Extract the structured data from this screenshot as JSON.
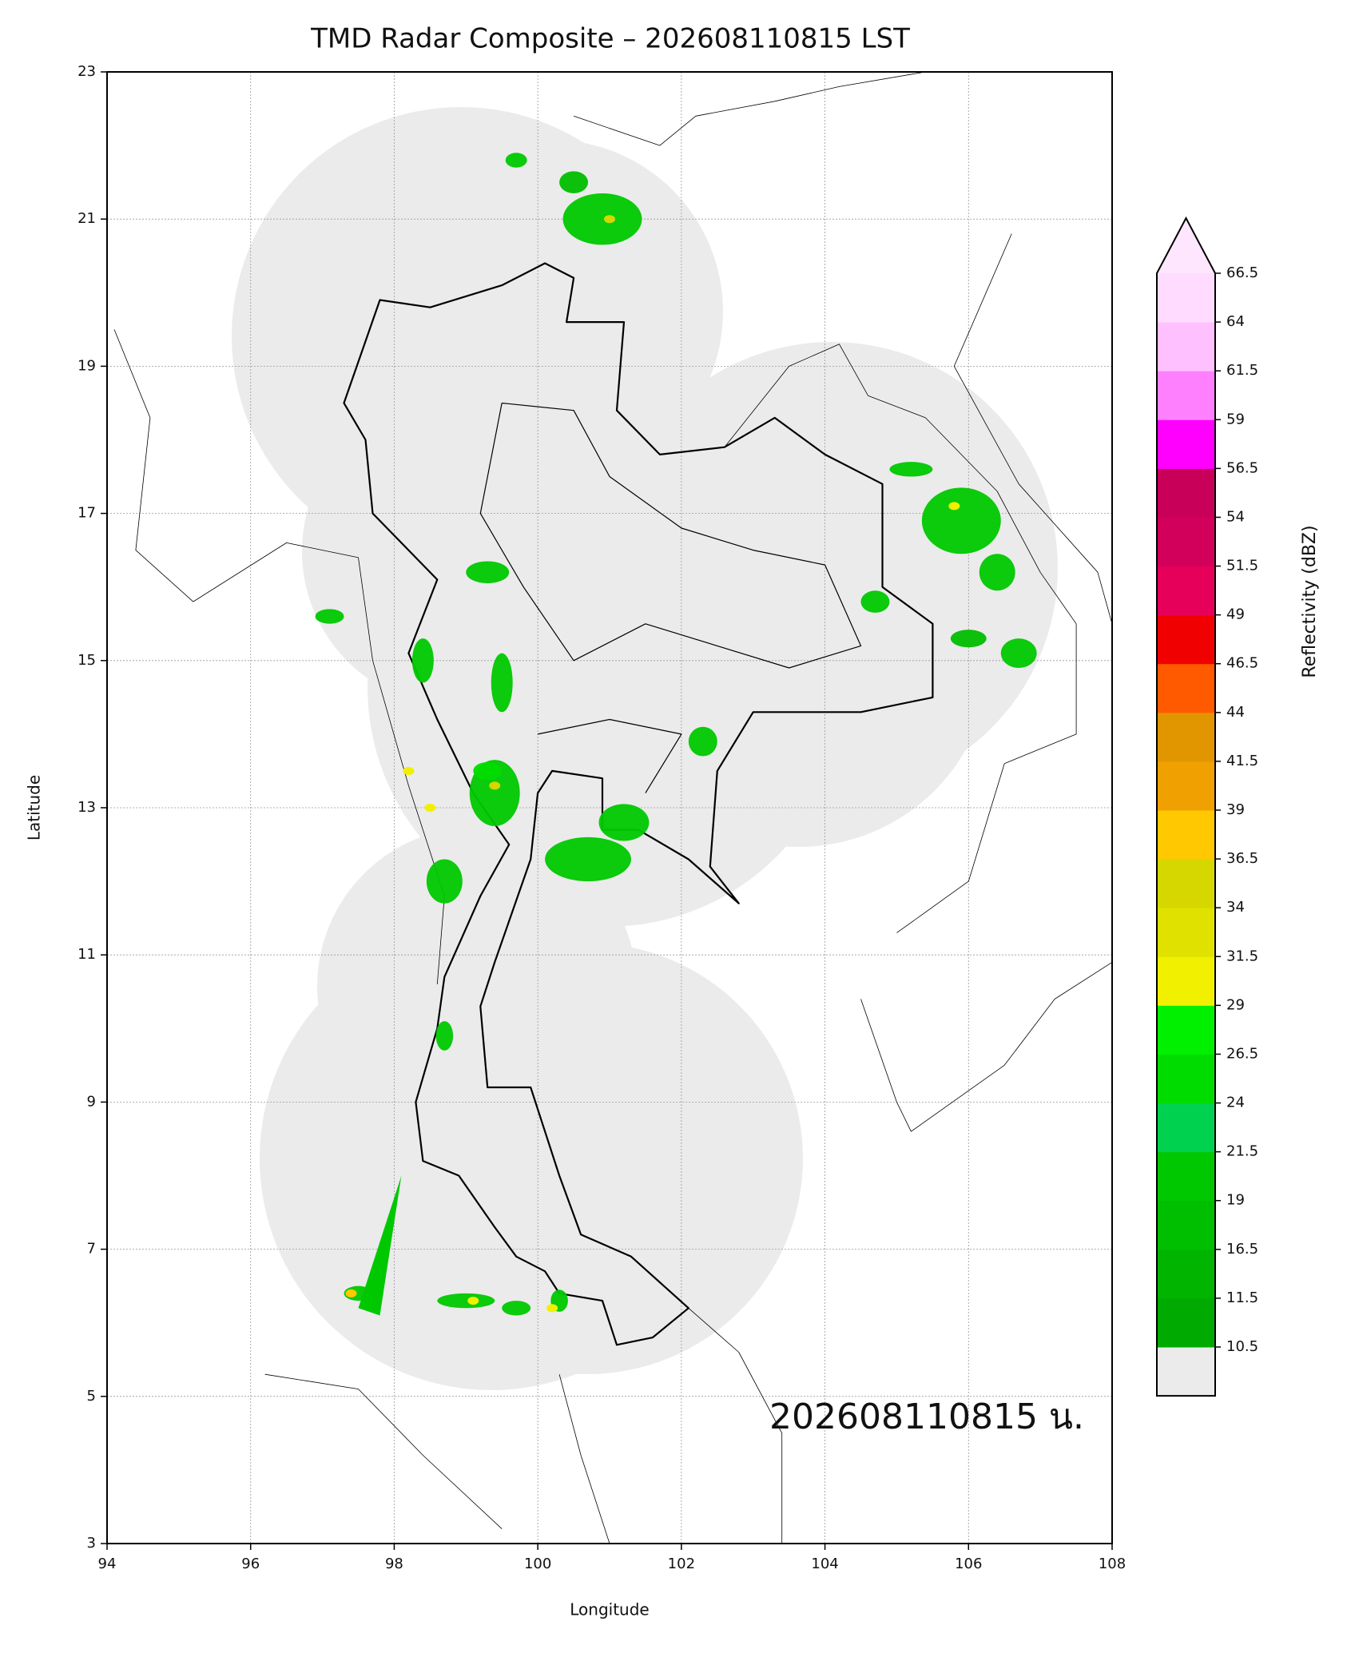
{
  "map": {
    "title": "TMD Radar Composite – 202608110815 LST",
    "annotation": "202608110815 น.",
    "x_axis": {
      "label": "Longitude",
      "lim": [
        94,
        108
      ],
      "ticks": [
        94,
        96,
        98,
        100,
        102,
        104,
        106,
        108
      ]
    },
    "y_axis": {
      "label": "Latitude",
      "lim": [
        3,
        23
      ],
      "ticks": [
        3,
        5,
        7,
        9,
        11,
        13,
        15,
        17,
        19,
        21,
        23
      ]
    },
    "colorbar": {
      "label": "Reflectivity (dBZ)",
      "ticks": [
        10.5,
        11.5,
        16.5,
        19.0,
        21.5,
        24.0,
        26.5,
        29.0,
        31.5,
        34.0,
        36.5,
        39.0,
        41.5,
        44.0,
        46.5,
        49.0,
        51.5,
        54.0,
        56.5,
        59.0,
        61.5,
        64.0,
        66.5
      ],
      "colors": [
        "#00aa00",
        "#00b400",
        "#00be00",
        "#00c800",
        "#00d250",
        "#00dc00",
        "#00f000",
        "#f0f000",
        "#e1e100",
        "#d7d700",
        "#ffc800",
        "#f0a000",
        "#e19600",
        "#ff5a00",
        "#f00000",
        "#e6005a",
        "#d2005a",
        "#c8005a",
        "#ff00ff",
        "#ff80ff",
        "#ffc0ff",
        "#ffdcff"
      ],
      "under_color": "#ebebeb",
      "over_color": "#ffe6ff"
    }
  }
}
